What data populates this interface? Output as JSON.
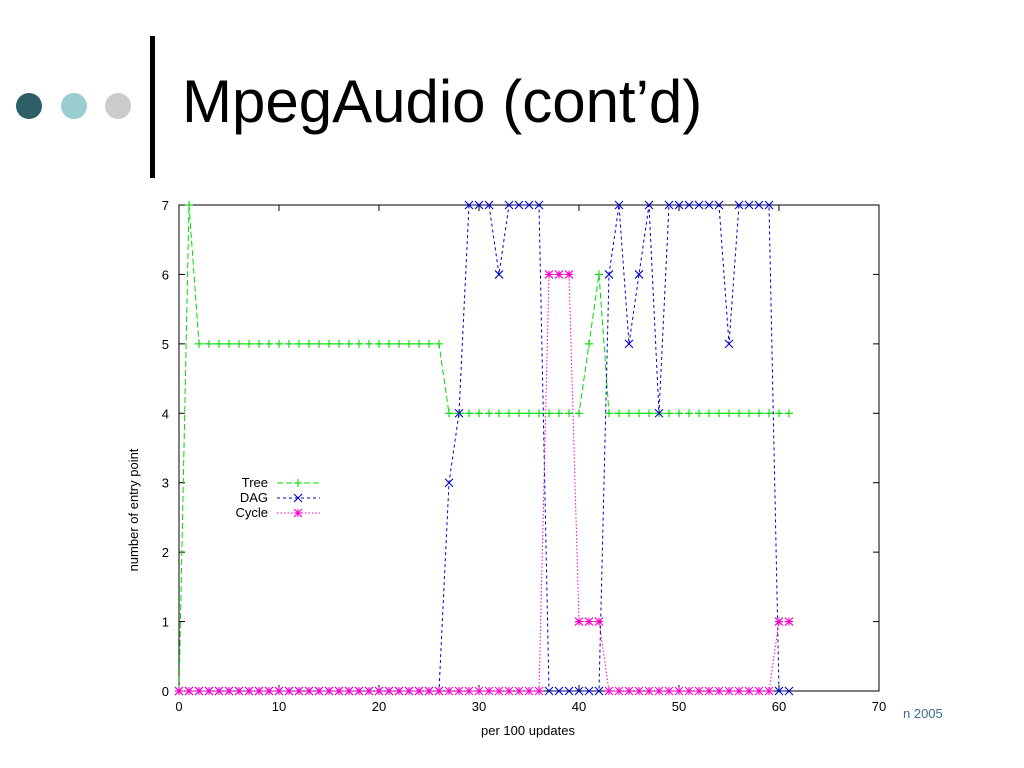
{
  "slide": {
    "title": "MpegAudio (cont’d)",
    "footer": "n 2005",
    "dot_colors": [
      "#2e5e66",
      "#99cdd0",
      "#cccccc"
    ]
  },
  "chart_data": {
    "type": "line",
    "xlabel": "per 100 updates",
    "ylabel": "number of entry point",
    "xlim": [
      0,
      70
    ],
    "ylim": [
      0,
      7
    ],
    "xticks": [
      0,
      10,
      20,
      30,
      40,
      50,
      60,
      70
    ],
    "yticks": [
      0,
      1,
      2,
      3,
      4,
      5,
      6,
      7
    ],
    "grid": false,
    "legend_position": "middle-left",
    "series": [
      {
        "name": "Tree",
        "color": "#00dd00",
        "marker": "+",
        "x": [
          0,
          1,
          2,
          3,
          4,
          5,
          6,
          7,
          8,
          9,
          10,
          11,
          12,
          13,
          14,
          15,
          16,
          17,
          18,
          19,
          20,
          21,
          22,
          23,
          24,
          25,
          26,
          27,
          28,
          29,
          30,
          31,
          32,
          33,
          34,
          35,
          36,
          37,
          38,
          39,
          40,
          41,
          42,
          43,
          44,
          45,
          46,
          47,
          48,
          49,
          50,
          51,
          52,
          53,
          54,
          55,
          56,
          57,
          58,
          59,
          60,
          61
        ],
        "y": [
          0,
          7,
          5,
          5,
          5,
          5,
          5,
          5,
          5,
          5,
          5,
          5,
          5,
          5,
          5,
          5,
          5,
          5,
          5,
          5,
          5,
          5,
          5,
          5,
          5,
          5,
          5,
          4,
          4,
          4,
          4,
          4,
          4,
          4,
          4,
          4,
          4,
          4,
          4,
          4,
          4,
          5,
          6,
          4,
          4,
          4,
          4,
          4,
          4,
          4,
          4,
          4,
          4,
          4,
          4,
          4,
          4,
          4,
          4,
          4,
          4,
          4
        ]
      },
      {
        "name": "DAG",
        "color": "#0000cc",
        "marker": "x",
        "x": [
          0,
          1,
          2,
          3,
          4,
          5,
          6,
          7,
          8,
          9,
          10,
          11,
          12,
          13,
          14,
          15,
          16,
          17,
          18,
          19,
          20,
          21,
          22,
          23,
          24,
          25,
          26,
          27,
          28,
          29,
          30,
          31,
          32,
          33,
          34,
          35,
          36,
          37,
          38,
          39,
          40,
          41,
          42,
          43,
          44,
          45,
          46,
          47,
          48,
          49,
          50,
          51,
          52,
          53,
          54,
          55,
          56,
          57,
          58,
          59,
          60,
          61
        ],
        "y": [
          0,
          0,
          0,
          0,
          0,
          0,
          0,
          0,
          0,
          0,
          0,
          0,
          0,
          0,
          0,
          0,
          0,
          0,
          0,
          0,
          0,
          0,
          0,
          0,
          0,
          0,
          0,
          3,
          4,
          7,
          7,
          7,
          6,
          7,
          7,
          7,
          7,
          0,
          0,
          0,
          0,
          0,
          0,
          6,
          7,
          5,
          6,
          7,
          4,
          7,
          7,
          7,
          7,
          7,
          7,
          5,
          7,
          7,
          7,
          7,
          0,
          0
        ]
      },
      {
        "name": "Cycle",
        "color": "#ff00cc",
        "marker": "*",
        "x": [
          0,
          1,
          2,
          3,
          4,
          5,
          6,
          7,
          8,
          9,
          10,
          11,
          12,
          13,
          14,
          15,
          16,
          17,
          18,
          19,
          20,
          21,
          22,
          23,
          24,
          25,
          26,
          27,
          28,
          29,
          30,
          31,
          32,
          33,
          34,
          35,
          36,
          37,
          38,
          39,
          40,
          41,
          42,
          43,
          44,
          45,
          46,
          47,
          48,
          49,
          50,
          51,
          52,
          53,
          54,
          55,
          56,
          57,
          58,
          59,
          60,
          61
        ],
        "y": [
          0,
          0,
          0,
          0,
          0,
          0,
          0,
          0,
          0,
          0,
          0,
          0,
          0,
          0,
          0,
          0,
          0,
          0,
          0,
          0,
          0,
          0,
          0,
          0,
          0,
          0,
          0,
          0,
          0,
          0,
          0,
          0,
          0,
          0,
          0,
          0,
          0,
          6,
          6,
          6,
          1,
          1,
          1,
          0,
          0,
          0,
          0,
          0,
          0,
          0,
          0,
          0,
          0,
          0,
          0,
          0,
          0,
          0,
          0,
          0,
          1,
          1
        ]
      }
    ]
  }
}
